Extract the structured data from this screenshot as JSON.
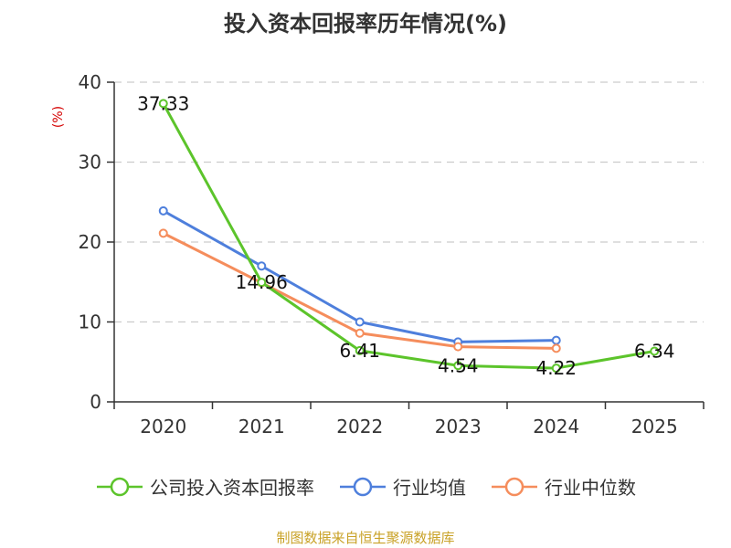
{
  "chart_data": {
    "type": "line",
    "title": "投入资本回报率历年情况(%)",
    "ylabel": "(%)",
    "xlabel": "",
    "ylim": [
      0,
      40
    ],
    "yticks": [
      0,
      10,
      20,
      30,
      40
    ],
    "categories": [
      "2020",
      "2021",
      "2022",
      "2023",
      "2024",
      "2025"
    ],
    "grid": true,
    "legend_position": "bottom",
    "series": [
      {
        "name": "公司投入资本回报率",
        "color": "#5cc42b",
        "values": [
          37.33,
          14.96,
          6.41,
          4.54,
          4.22,
          6.34
        ],
        "labels": [
          "37.33",
          "14.96",
          "6.41",
          "4.54",
          "4.22",
          "6.34"
        ]
      },
      {
        "name": "行业均值",
        "color": "#4e7fdc",
        "values": [
          23.9,
          17.0,
          10.0,
          7.5,
          7.7,
          null
        ]
      },
      {
        "name": "行业中位数",
        "color": "#f58d5c",
        "values": [
          21.1,
          14.9,
          8.6,
          6.9,
          6.7,
          null
        ]
      }
    ]
  },
  "source": "制图数据来自恒生聚源数据库"
}
